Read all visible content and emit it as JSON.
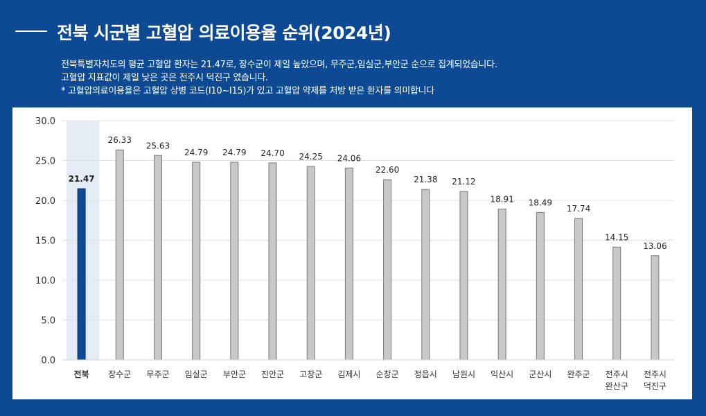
{
  "header": {
    "title": "전북 시군별 고혈압 의료이용율 순위(2024년)",
    "desc_line1": "전북특별자치도의 평균 고혈압 환자는 21.47로, 장수군이 제일 높았으며, 무주군,임실군,부안군 순으로 집계되었습니다.",
    "desc_line2": "고혈압 지표값이 제일 낮은 곳은 전주시 덕진구 였습니다.",
    "desc_line3": "* 고혈압의료이용율은 고혈압 상병 코드(I10~I15)가 있고 고혈압 약제를 처방 받은 환자를 의미합니다"
  },
  "colors": {
    "background": "#0e4a94",
    "highlight_bar": "#0e4a94",
    "highlight_band": "#e6ecf5",
    "highlight_label": "#0e4a94",
    "bar": "#c8c8c8",
    "bar_stroke": "#7a7a7a"
  },
  "chart_data": {
    "type": "bar",
    "title": "",
    "xlabel": "",
    "ylabel": "",
    "ylim": [
      0,
      30
    ],
    "yticks": [
      "0.0",
      "5.0",
      "10.0",
      "15.0",
      "20.0",
      "25.0",
      "30.0"
    ],
    "grid": true,
    "highlight_index": 0,
    "categories": [
      [
        "전북"
      ],
      [
        "장수군"
      ],
      [
        "무주군"
      ],
      [
        "임실군"
      ],
      [
        "부안군"
      ],
      [
        "진안군"
      ],
      [
        "고창군"
      ],
      [
        "김제시"
      ],
      [
        "순창군"
      ],
      [
        "정읍시"
      ],
      [
        "남원시"
      ],
      [
        "익산시"
      ],
      [
        "군산시"
      ],
      [
        "완주군"
      ],
      [
        "전주시",
        "완산구"
      ],
      [
        "전주시",
        "덕진구"
      ]
    ],
    "values": [
      21.47,
      26.33,
      25.63,
      24.79,
      24.79,
      24.7,
      24.25,
      24.06,
      22.6,
      21.38,
      21.12,
      18.91,
      18.49,
      17.74,
      14.15,
      13.06
    ],
    "value_labels": [
      "21.47",
      "26.33",
      "25.63",
      "24.79",
      "24.79",
      "24.70",
      "24.25",
      "24.06",
      "22.60",
      "21.38",
      "21.12",
      "18.91",
      "18.49",
      "17.74",
      "14.15",
      "13.06"
    ]
  }
}
